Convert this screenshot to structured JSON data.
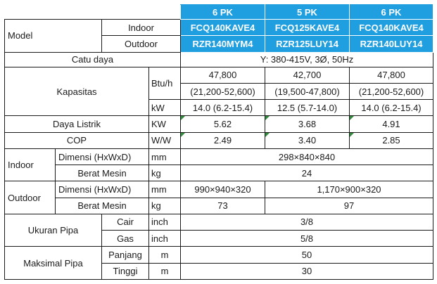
{
  "header": {
    "pk": [
      "6 PK",
      "5 PK",
      "6 PK"
    ],
    "indoor_models": [
      "FCQ140KAVE4",
      "FCQ125KAVE4",
      "FCQ140KAVE4"
    ],
    "outdoor_models": [
      "RZR140MYM4",
      "RZR125LUY14",
      "RZR140LUY14"
    ]
  },
  "labels": {
    "model": "Model",
    "indoor": "Indoor",
    "outdoor": "Outdoor",
    "catu_daya": "Catu daya",
    "kapasitas": "Kapasitas",
    "daya_listrik": "Daya Listrik",
    "cop": "COP",
    "dimensi": "Dimensi (HxWxD)",
    "berat_mesin": "Berat Mesin",
    "ukuran_pipa": "Ukuran Pipa",
    "cair": "Cair",
    "gas": "Gas",
    "maksimal_pipa": "Maksimal Pipa",
    "panjang": "Panjang",
    "tinggi": "Tinggi"
  },
  "units": {
    "btuh": "Btu/h",
    "kw_lower": "kW",
    "kw_upper": "KW",
    "ww": "W/W",
    "mm": "mm",
    "kg": "kg",
    "inch": "inch",
    "m": "m"
  },
  "values": {
    "catu_daya": "Y: 380-415V, 3Ø, 50Hz",
    "btuh": [
      "47,800",
      "42,700",
      "47,800"
    ],
    "btuh_range": [
      "(21,200-52,600)",
      "(19,500-47,800)",
      "(21,200-52,600)"
    ],
    "kw": [
      "14.0 (6.2-15.4)",
      "12.5 (5.7-14.0)",
      "14.0 (6.2-15.4)"
    ],
    "daya_listrik": [
      "5.62",
      "3.68",
      "4.91"
    ],
    "cop": [
      "2.49",
      "3.40",
      "2.85"
    ],
    "indoor_dimensi": "298×840×840",
    "indoor_berat": "24",
    "outdoor_dimensi_1": "990×940×320",
    "outdoor_dimensi_23": "1,170×900×320",
    "outdoor_berat_1": "73",
    "outdoor_berat_23": "97",
    "pipa_cair": "3/8",
    "pipa_gas": "5/8",
    "max_panjang": "50",
    "max_tinggi": "30"
  }
}
